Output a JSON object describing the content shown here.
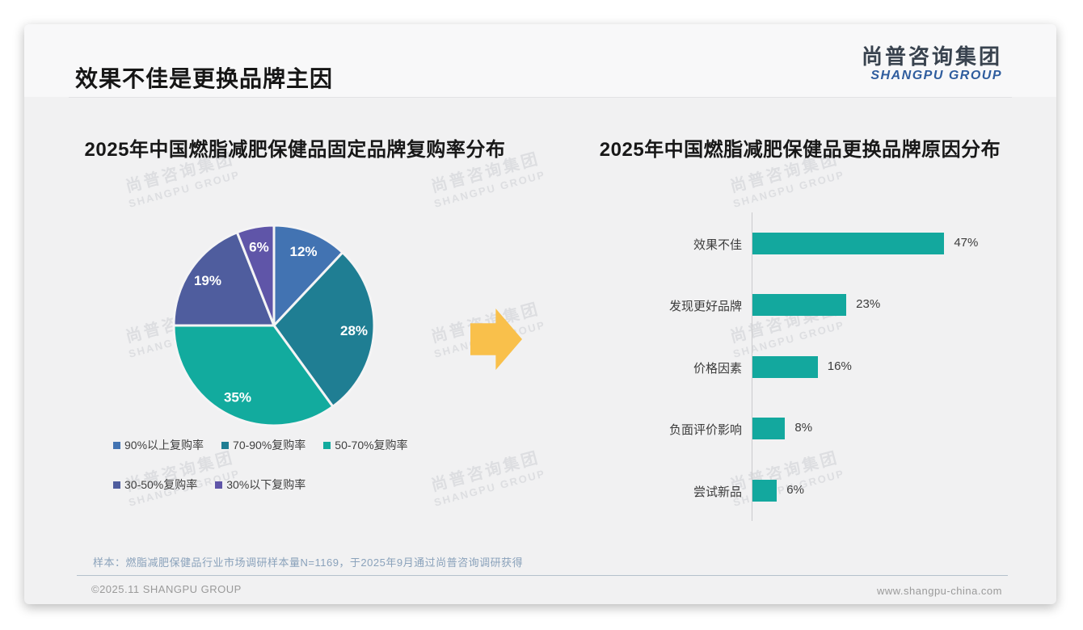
{
  "page": {
    "main_title": "效果不佳是更换品牌主因",
    "logo": {
      "cn": "尚普咨询集团",
      "en": "SHANGPU GROUP"
    },
    "watermark": {
      "cn": "尚普咨询集团",
      "en": "SHANGPU GROUP"
    },
    "footer": {
      "note": "样本：燃脂减肥保健品行业市场调研样本量N=1169，于2025年9月通过尚普咨询调研获得",
      "copyright": "©2025.11 SHANGPU GROUP",
      "website": "www.shangpu-china.com"
    },
    "arrow_color": "#f9c04b"
  },
  "chart_data": [
    {
      "type": "pie",
      "title": "2025年中国燃脂减肥保健品固定品牌复购率分布",
      "labels": [
        "90%以上复购率",
        "70-90%复购率",
        "50-70%复购率",
        "30-50%复购率",
        "30%以下复购率"
      ],
      "values": [
        12,
        28,
        35,
        19,
        6
      ],
      "colors": [
        "#4273b2",
        "#1f7e93",
        "#12ab9e",
        "#4f5d9e",
        "#5f55a8"
      ],
      "data_labels": [
        "12%",
        "28%",
        "35%",
        "19%",
        "6%"
      ],
      "start_angle_deg": 0,
      "direction": "clockwise",
      "legend_position": "bottom",
      "legend_rows": [
        [
          0,
          1,
          2
        ],
        [
          3,
          4
        ]
      ]
    },
    {
      "type": "bar",
      "orientation": "horizontal",
      "title": "2025年中国燃脂减肥保健品更换品牌原因分布",
      "categories": [
        "效果不佳",
        "发现更好品牌",
        "价格因素",
        "负面评价影响",
        "尝试新品"
      ],
      "values": [
        47,
        23,
        16,
        8,
        6
      ],
      "value_labels": [
        "47%",
        "23%",
        "16%",
        "8%",
        "6%"
      ],
      "bar_color": "#13a89e",
      "xlim": [
        0,
        50
      ],
      "grid": false
    }
  ]
}
